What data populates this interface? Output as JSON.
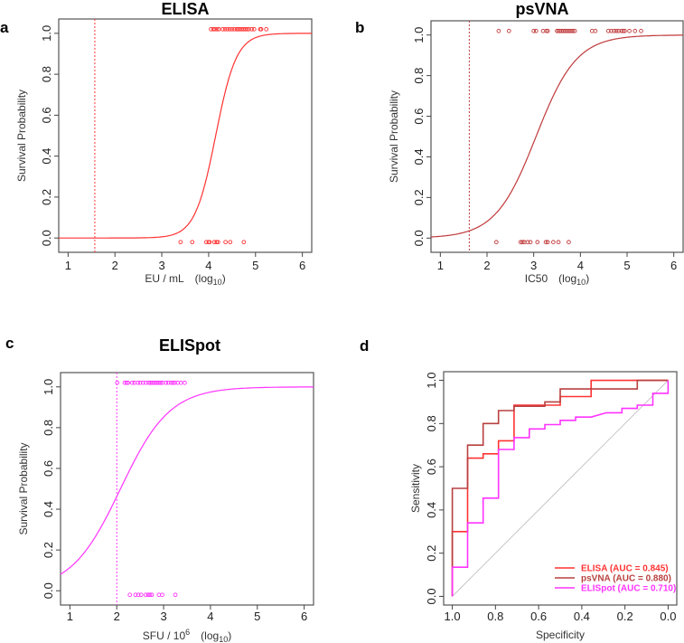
{
  "chart_data": [
    {
      "panel_label": "a",
      "type": "line",
      "title": "ELISA",
      "ylabel": "Survival Probability",
      "xlabel": {
        "main": "EU / mL",
        "log": "(log",
        "sub": "10",
        "close": ")",
        "sup": ""
      },
      "xlim": [
        0.8,
        6.2
      ],
      "ylim": [
        -0.07,
        1.07
      ],
      "xticks": [
        "1",
        "2",
        "3",
        "4",
        "5",
        "6"
      ],
      "yticks": [
        "0.0",
        "0.2",
        "0.4",
        "0.6",
        "0.8",
        "1.0"
      ],
      "color": "#ff3333",
      "logistic": {
        "midpoint": 4.15,
        "slope": 4.5
      },
      "cutoff": 1.57,
      "survivors_x": [
        4.05,
        4.1,
        4.13,
        4.18,
        4.22,
        4.3,
        4.35,
        4.4,
        4.45,
        4.5,
        4.55,
        4.6,
        4.63,
        4.66,
        4.7,
        4.74,
        4.78,
        4.82,
        4.86,
        4.92,
        4.97,
        5.1,
        5.12,
        5.23
      ],
      "nonsurvivors_x": [
        3.4,
        3.65,
        3.95,
        4.0,
        4.02,
        4.12,
        4.17,
        4.2,
        4.36,
        4.46,
        4.75
      ]
    },
    {
      "panel_label": "b",
      "type": "line",
      "title": "psVNA",
      "ylabel": "Survival Probability",
      "xlabel": {
        "main": "IC50",
        "log": "(log",
        "sub": "10",
        "close": ")",
        "sup": ""
      },
      "xlim": [
        0.8,
        6.2
      ],
      "ylim": [
        -0.07,
        1.07
      ],
      "xticks": [
        "1",
        "2",
        "3",
        "4",
        "5",
        "6"
      ],
      "yticks": [
        "0.0",
        "0.2",
        "0.4",
        "0.6",
        "0.8",
        "1.0"
      ],
      "color": "#c0393b",
      "logistic": {
        "midpoint": 3.05,
        "slope": 2.3
      },
      "cutoff": 1.62,
      "survivors_x": [
        2.25,
        2.47,
        3.0,
        3.05,
        3.2,
        3.27,
        3.3,
        3.5,
        3.53,
        3.56,
        3.6,
        3.64,
        3.68,
        3.72,
        3.76,
        3.8,
        3.84,
        3.88,
        4.25,
        4.32,
        4.6,
        4.66,
        4.72,
        4.77,
        4.82,
        4.88,
        4.92,
        4.95,
        5.05,
        5.17,
        5.3
      ],
      "nonsurvivors_x": [
        2.2,
        2.72,
        2.76,
        2.8,
        2.87,
        2.93,
        3.08,
        3.26,
        3.3,
        3.42,
        3.53,
        3.75
      ]
    },
    {
      "panel_label": "c",
      "type": "line",
      "title": "ELISpot",
      "ylabel": "Survival Probability",
      "xlabel": {
        "main": "SFU / 10",
        "sup": "6",
        "log": "(log",
        "sub": "10",
        "close": ")"
      },
      "xlim": [
        0.8,
        6.2
      ],
      "ylim": [
        -0.07,
        1.07
      ],
      "xticks": [
        "1",
        "2",
        "3",
        "4",
        "5",
        "6"
      ],
      "yticks": [
        "0.0",
        "0.2",
        "0.4",
        "0.6",
        "0.8",
        "1.0"
      ],
      "color": "#ff33ff",
      "logistic": {
        "midpoint": 2.08,
        "slope": 1.9
      },
      "cutoff": 2.0,
      "survivors_x": [
        2.01,
        2.17,
        2.21,
        2.24,
        2.33,
        2.38,
        2.45,
        2.5,
        2.56,
        2.62,
        2.68,
        2.72,
        2.75,
        2.78,
        2.82,
        2.86,
        2.9,
        2.94,
        2.98,
        3.05,
        3.1,
        3.16,
        3.2,
        3.24,
        3.3,
        3.37,
        3.45
      ],
      "nonsurvivors_x": [
        2.28,
        2.4,
        2.46,
        2.52,
        2.62,
        2.67,
        2.71,
        2.75,
        2.9,
        2.97,
        3.25
      ]
    },
    {
      "panel_label": "d",
      "type": "line",
      "title": "",
      "ylabel": "Sensitivity",
      "xlabel": {
        "main": "Specificity",
        "log": "",
        "sub": "",
        "close": "",
        "sup": ""
      },
      "xlim": [
        1.04,
        -0.04
      ],
      "ylim": [
        -0.04,
        1.04
      ],
      "xticks": [
        "1.0",
        "0.8",
        "0.6",
        "0.4",
        "0.2",
        "0.0"
      ],
      "xtick_values": [
        1.0,
        0.8,
        0.6,
        0.4,
        0.2,
        0.0
      ],
      "yticks": [
        "0.0",
        "0.2",
        "0.4",
        "0.6",
        "0.8",
        "1.0"
      ],
      "series": [
        {
          "name": "ELISA (AUC = 0.845)",
          "color": "#ff3333",
          "points": [
            [
              1,
              0
            ],
            [
              1,
              0.3
            ],
            [
              0.929,
              0.3
            ],
            [
              0.929,
              0.64
            ],
            [
              0.857,
              0.64
            ],
            [
              0.857,
              0.66
            ],
            [
              0.786,
              0.66
            ],
            [
              0.786,
              0.72
            ],
            [
              0.714,
              0.72
            ],
            [
              0.714,
              0.885
            ],
            [
              0.5,
              0.885
            ],
            [
              0.5,
              0.925
            ],
            [
              0.357,
              0.925
            ],
            [
              0.357,
              1.0
            ],
            [
              0,
              1.0
            ]
          ]
        },
        {
          "name": "psVNA (AUC = 0.880)",
          "color": "#b84040",
          "points": [
            [
              1,
              0
            ],
            [
              1,
              0.5
            ],
            [
              0.929,
              0.5
            ],
            [
              0.929,
              0.7
            ],
            [
              0.857,
              0.7
            ],
            [
              0.857,
              0.8
            ],
            [
              0.786,
              0.8
            ],
            [
              0.786,
              0.86
            ],
            [
              0.714,
              0.86
            ],
            [
              0.714,
              0.88
            ],
            [
              0.571,
              0.88
            ],
            [
              0.571,
              0.9
            ],
            [
              0.5,
              0.9
            ],
            [
              0.5,
              0.96
            ],
            [
              0.143,
              0.96
            ],
            [
              0.143,
              1.0
            ],
            [
              0,
              1.0
            ]
          ]
        },
        {
          "name": "ELISpot (AUC = 0.710)",
          "color": "#ff33ff",
          "points": [
            [
              1,
              0
            ],
            [
              1,
              0.135
            ],
            [
              0.929,
              0.135
            ],
            [
              0.929,
              0.34
            ],
            [
              0.857,
              0.34
            ],
            [
              0.857,
              0.455
            ],
            [
              0.786,
              0.455
            ],
            [
              0.786,
              0.68
            ],
            [
              0.714,
              0.68
            ],
            [
              0.714,
              0.735
            ],
            [
              0.643,
              0.735
            ],
            [
              0.643,
              0.775
            ],
            [
              0.571,
              0.775
            ],
            [
              0.571,
              0.795
            ],
            [
              0.5,
              0.795
            ],
            [
              0.5,
              0.815
            ],
            [
              0.429,
              0.815
            ],
            [
              0.429,
              0.83
            ],
            [
              0.357,
              0.83
            ],
            [
              0.286,
              0.85
            ],
            [
              0.214,
              0.85
            ],
            [
              0.214,
              0.87
            ],
            [
              0.143,
              0.87
            ],
            [
              0.143,
              0.885
            ],
            [
              0.071,
              0.885
            ],
            [
              0.071,
              0.94
            ],
            [
              0,
              0.94
            ],
            [
              0,
              1.0
            ]
          ]
        }
      ],
      "legend_placement": "bottom-right",
      "diagonal": true
    }
  ]
}
